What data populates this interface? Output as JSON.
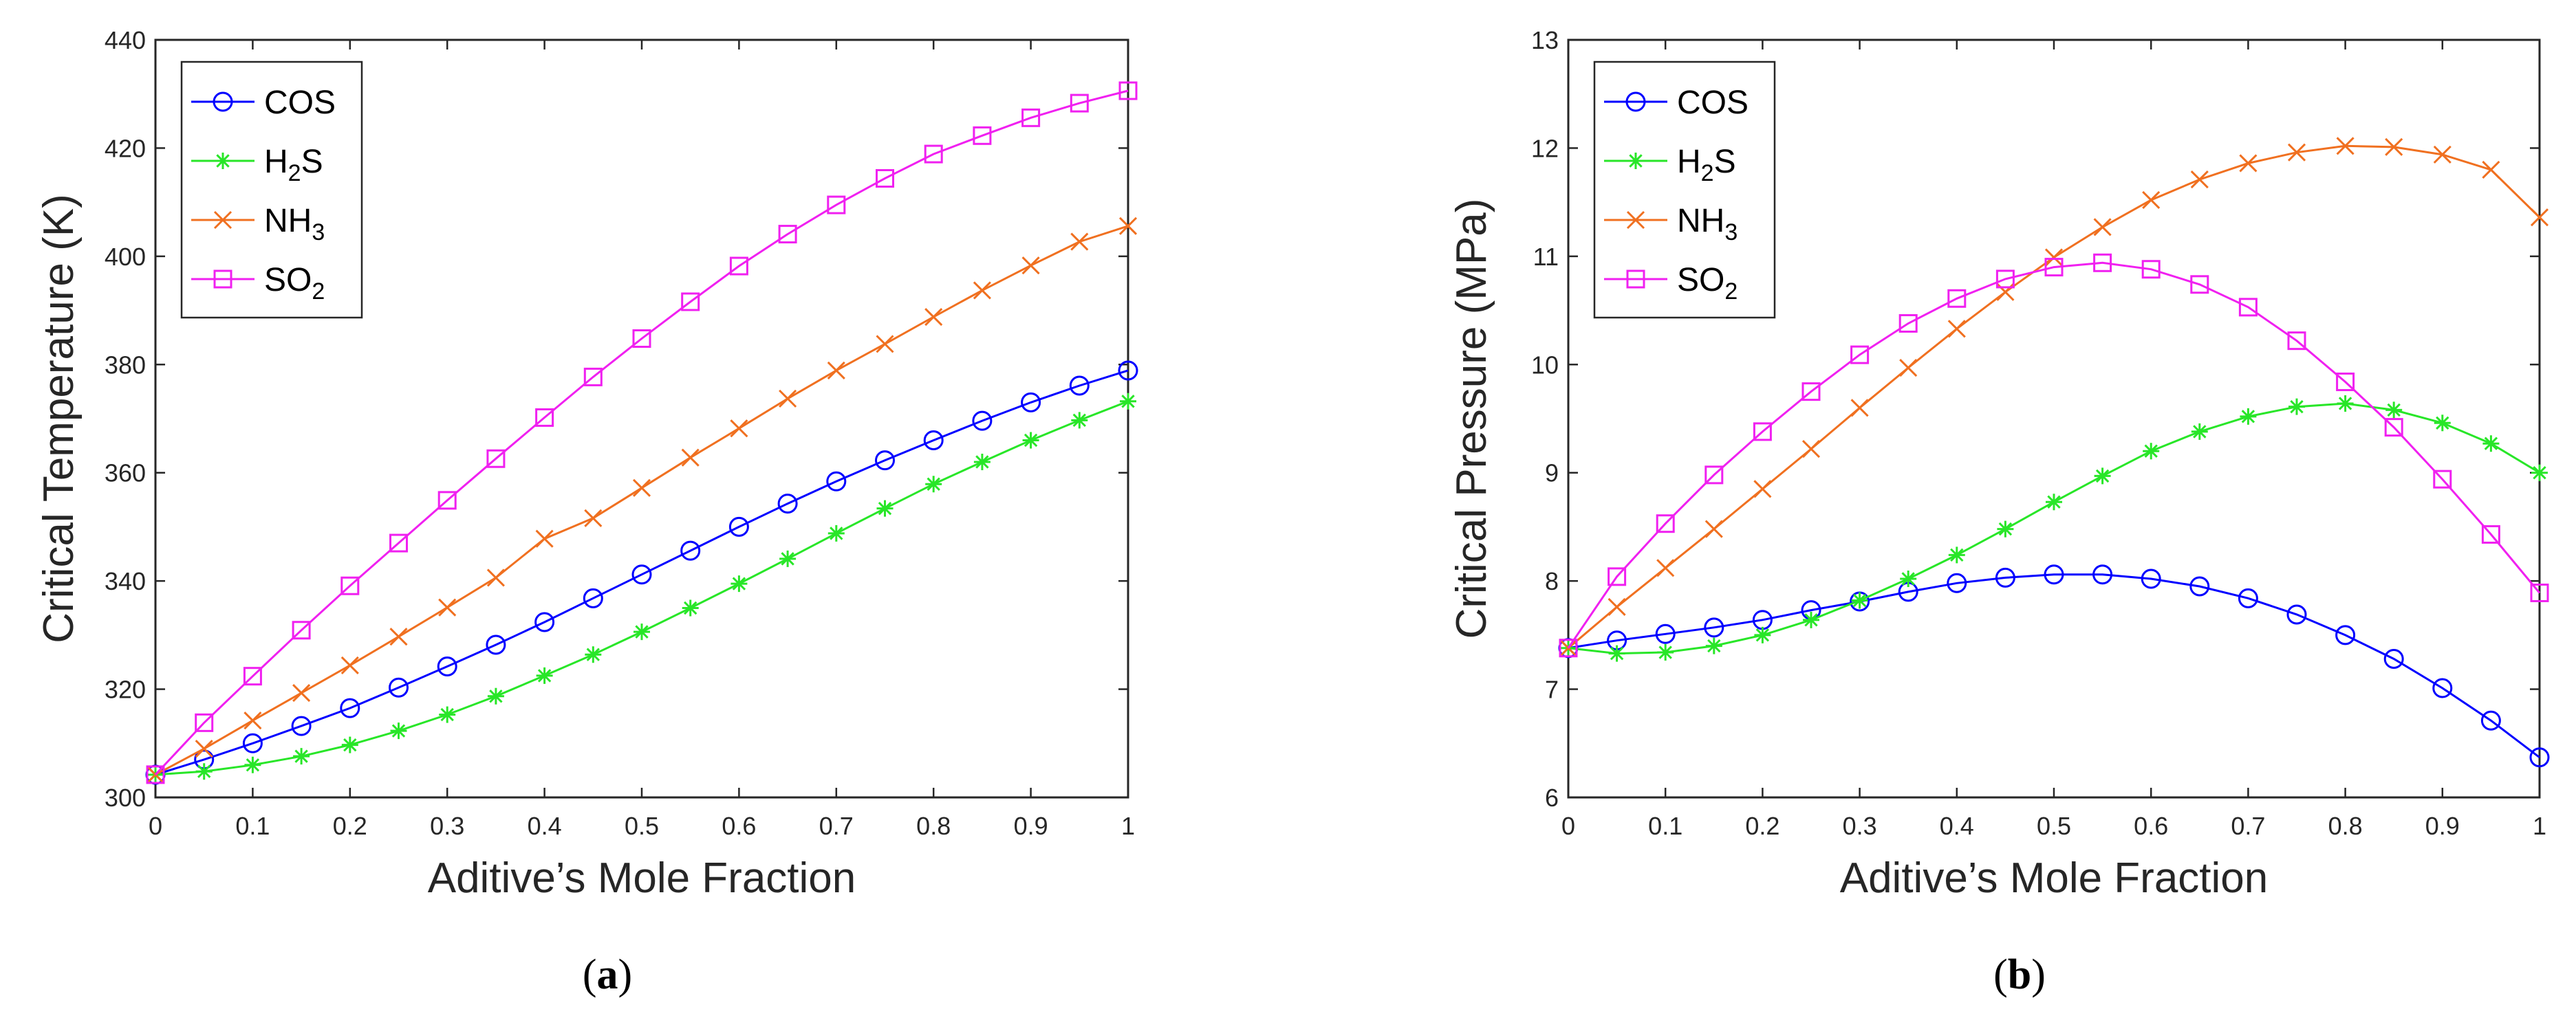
{
  "figure": {
    "caption_a": {
      "open": "(",
      "letter": "a",
      "close": ")"
    },
    "caption_b": {
      "open": "(",
      "letter": "b",
      "close": ")"
    }
  },
  "colors": {
    "COS": "#0000ff",
    "H2S": "#28e628",
    "NH3": "#f07020",
    "SO2": "#f020f0"
  },
  "chart_data": [
    {
      "id": "a",
      "type": "line",
      "xlabel": "Aditive’s Mole Fraction",
      "ylabel": "Critical Temperature (K)",
      "xlim": [
        0,
        1
      ],
      "ylim": [
        300,
        440
      ],
      "xticks": [
        0,
        0.1,
        0.2,
        0.3,
        0.4,
        0.5,
        0.6,
        0.7,
        0.8,
        0.9,
        1
      ],
      "xtick_labels": [
        "0",
        "0.1",
        "0.2",
        "0.3",
        "0.4",
        "0.5",
        "0.6",
        "0.7",
        "0.8",
        "0.9",
        "1"
      ],
      "yticks": [
        300,
        320,
        340,
        360,
        380,
        400,
        420,
        440
      ],
      "ytick_labels": [
        "300",
        "320",
        "340",
        "360",
        "380",
        "400",
        "420",
        "440"
      ],
      "legend_position": "top-left",
      "x": [
        0,
        0.05,
        0.1,
        0.15,
        0.2,
        0.25,
        0.3,
        0.35,
        0.4,
        0.45,
        0.5,
        0.55,
        0.6,
        0.65,
        0.7,
        0.75,
        0.8,
        0.85,
        0.9,
        0.95,
        1
      ],
      "series": [
        {
          "key": "COS",
          "name": "COS",
          "base": "COS",
          "sub": "",
          "marker": "circle",
          "values": [
            304.2,
            307.0,
            310.0,
            313.2,
            316.5,
            320.3,
            324.2,
            328.2,
            332.4,
            336.8,
            341.2,
            345.6,
            350.0,
            354.3,
            358.4,
            362.3,
            366.0,
            369.6,
            373.0,
            376.1,
            378.9
          ]
        },
        {
          "key": "H2S",
          "name": "H2S",
          "base": "H",
          "sub": "2",
          "tail": "S",
          "marker": "star",
          "values": [
            304.2,
            304.8,
            306.0,
            307.6,
            309.7,
            312.3,
            315.3,
            318.7,
            322.5,
            326.4,
            330.6,
            335.0,
            339.5,
            344.1,
            348.8,
            353.4,
            357.9,
            362.0,
            366.0,
            369.7,
            373.2
          ]
        },
        {
          "key": "NH3",
          "name": "NH3",
          "base": "NH",
          "sub": "3",
          "tail": "",
          "marker": "x",
          "values": [
            304.2,
            309.0,
            314.2,
            319.3,
            324.4,
            329.7,
            335.1,
            340.6,
            347.8,
            351.6,
            357.2,
            362.8,
            368.2,
            373.7,
            378.9,
            383.8,
            388.8,
            393.7,
            398.3,
            402.7,
            405.6
          ]
        },
        {
          "key": "SO2",
          "name": "SO2",
          "base": "SO",
          "sub": "2",
          "tail": "",
          "marker": "square",
          "values": [
            304.2,
            313.8,
            322.4,
            330.9,
            339.1,
            347.0,
            354.9,
            362.6,
            370.2,
            377.7,
            384.8,
            391.6,
            398.2,
            404.1,
            409.5,
            414.4,
            418.9,
            422.3,
            425.6,
            428.3,
            430.6
          ]
        }
      ]
    },
    {
      "id": "b",
      "type": "line",
      "xlabel": "Aditive’s Mole Fraction",
      "ylabel": "Critical Pressure (MPa)",
      "xlim": [
        0,
        1
      ],
      "ylim": [
        6,
        13
      ],
      "xticks": [
        0,
        0.1,
        0.2,
        0.3,
        0.4,
        0.5,
        0.6,
        0.7,
        0.8,
        0.9,
        1
      ],
      "xtick_labels": [
        "0",
        "0.1",
        "0.2",
        "0.3",
        "0.4",
        "0.5",
        "0.6",
        "0.7",
        "0.8",
        "0.9",
        "1"
      ],
      "yticks": [
        6,
        7,
        8,
        9,
        10,
        11,
        12,
        13
      ],
      "ytick_labels": [
        "6",
        "7",
        "8",
        "9",
        "10",
        "11",
        "12",
        "13"
      ],
      "legend_position": "top-left",
      "x": [
        0,
        0.05,
        0.1,
        0.15,
        0.2,
        0.25,
        0.3,
        0.35,
        0.4,
        0.45,
        0.5,
        0.55,
        0.6,
        0.65,
        0.7,
        0.75,
        0.8,
        0.85,
        0.9,
        0.95,
        1
      ],
      "series": [
        {
          "key": "COS",
          "name": "COS",
          "base": "COS",
          "sub": "",
          "marker": "circle",
          "values": [
            7.38,
            7.45,
            7.51,
            7.57,
            7.64,
            7.73,
            7.81,
            7.9,
            7.98,
            8.03,
            8.06,
            8.06,
            8.02,
            7.95,
            7.84,
            7.69,
            7.5,
            7.28,
            7.01,
            6.71,
            6.37
          ]
        },
        {
          "key": "H2S",
          "name": "H2S",
          "base": "H",
          "sub": "2",
          "tail": "S",
          "marker": "star",
          "values": [
            7.38,
            7.33,
            7.34,
            7.4,
            7.5,
            7.64,
            7.82,
            8.02,
            8.24,
            8.48,
            8.73,
            8.97,
            9.2,
            9.38,
            9.52,
            9.61,
            9.64,
            9.58,
            9.46,
            9.27,
            9.0
          ]
        },
        {
          "key": "NH3",
          "name": "NH3",
          "base": "NH",
          "sub": "3",
          "tail": "",
          "marker": "x",
          "values": [
            7.38,
            7.76,
            8.12,
            8.48,
            8.85,
            9.22,
            9.6,
            9.97,
            10.33,
            10.67,
            10.99,
            11.27,
            11.52,
            11.71,
            11.86,
            11.96,
            12.02,
            12.01,
            11.94,
            11.8,
            11.36
          ]
        },
        {
          "key": "SO2",
          "name": "SO2",
          "base": "SO",
          "sub": "2",
          "tail": "",
          "marker": "square",
          "values": [
            7.38,
            8.04,
            8.53,
            8.98,
            9.38,
            9.75,
            10.09,
            10.38,
            10.61,
            10.79,
            10.9,
            10.94,
            10.88,
            10.74,
            10.53,
            10.22,
            9.84,
            9.42,
            8.94,
            8.43,
            7.89
          ]
        }
      ]
    }
  ]
}
